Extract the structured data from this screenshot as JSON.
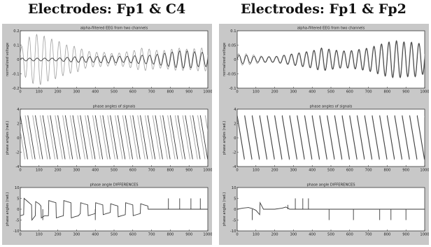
{
  "titles": {
    "left": "Electrodes: Fp1 & C4",
    "right": "Electrodes: Fp1 & Fp2"
  },
  "colors": {
    "figure_bg": "#c8c8c8",
    "axes_bg": "#ffffff",
    "series_dark": "#3a3a3a",
    "series_light": "#a0a0a0"
  },
  "chart_data": [
    {
      "type": "line",
      "panel": "left-top",
      "title": "alpha-filtered EEG from two channels",
      "ylabel": "normalized voltage",
      "xlim": [
        0,
        1000
      ],
      "ylim": [
        -0.2,
        0.2
      ],
      "xticks": [
        "0",
        "100",
        "200",
        "300",
        "400",
        "500",
        "600",
        "700",
        "800",
        "900",
        "1000"
      ],
      "yticks": [
        "-0.2",
        "-0.1",
        "0",
        "0.1",
        "0.2"
      ],
      "series": [
        {
          "color": "#a0a0a0",
          "x": [
            0,
            50,
            100,
            150,
            200,
            250,
            300,
            350,
            400,
            450,
            500,
            550,
            600,
            650,
            700,
            750,
            800,
            850,
            900,
            950,
            1000
          ],
          "envelope": [
            0.08,
            0.16,
            0.18,
            0.15,
            0.13,
            0.1,
            0.09,
            0.06,
            0.05,
            0.05,
            0.04,
            0.05,
            0.06,
            0.08,
            0.07,
            0.06,
            0.07,
            0.08,
            0.07,
            0.08,
            0.08
          ]
        },
        {
          "color": "#3a3a3a",
          "x": [
            0,
            50,
            100,
            150,
            200,
            250,
            300,
            350,
            400,
            450,
            500,
            550,
            600,
            650,
            700,
            750,
            800,
            850,
            900,
            950,
            1000
          ],
          "envelope": [
            0.01,
            0.01,
            0.01,
            0.01,
            0.01,
            0.015,
            0.02,
            0.02,
            0.02,
            0.025,
            0.025,
            0.02,
            0.025,
            0.03,
            0.03,
            0.04,
            0.05,
            0.06,
            0.06,
            0.05,
            0.05
          ]
        }
      ]
    },
    {
      "type": "line",
      "panel": "left-mid",
      "title": "phase angles of signals",
      "ylabel": "phase angles (rad.)",
      "xlim": [
        0,
        1000
      ],
      "ylim": [
        -4,
        4
      ],
      "xticks": [
        "0",
        "100",
        "200",
        "300",
        "400",
        "500",
        "600",
        "700",
        "800",
        "900",
        "1000"
      ],
      "yticks": [
        "-4",
        "-2",
        "0",
        "2",
        "4"
      ],
      "cycles": 25,
      "series": [
        {
          "color": "#a0a0a0",
          "phase_offset": 0.35
        },
        {
          "color": "#3a3a3a",
          "phase_offset": 0.0
        }
      ]
    },
    {
      "type": "line",
      "panel": "left-bottom",
      "title": "phase angle DIFFERENCES",
      "ylabel": "phase angles (rad.)",
      "xlim": [
        0,
        1000
      ],
      "ylim": [
        -10,
        10
      ],
      "xticks": [
        "0",
        "100",
        "200",
        "300",
        "400",
        "500",
        "600",
        "700",
        "800",
        "900",
        "1000"
      ],
      "yticks": [
        "-10",
        "-5",
        "0",
        "5",
        "10"
      ],
      "series": [
        {
          "color": "#3a3a3a",
          "x": [
            0,
            18,
            20,
            40,
            60,
            62,
            80,
            82,
            100,
            110,
            112,
            130,
            150,
            152,
            170,
            190,
            192,
            210,
            230,
            232,
            250,
            270,
            272,
            290,
            310,
            320,
            322,
            340,
            360,
            362,
            380,
            400,
            402,
            420,
            440,
            442,
            460,
            480,
            482,
            500,
            520,
            522,
            540,
            560,
            562,
            580,
            600,
            602,
            620,
            640,
            642,
            660,
            680,
            682,
            700,
            720,
            740,
            760,
            780,
            800,
            820,
            840,
            860,
            880,
            900,
            920,
            940,
            960,
            980,
            1000
          ],
          "y": [
            -3,
            -2.5,
            5,
            3.5,
            2,
            -5,
            -3,
            3.5,
            2.5,
            1.5,
            -4,
            -3,
            -3,
            4,
            3.5,
            3,
            -4,
            -3.5,
            -3,
            4,
            3.5,
            3,
            -4,
            -3.5,
            -3,
            -2,
            3,
            2.5,
            2,
            -3,
            -2.5,
            -2,
            3,
            2.5,
            2,
            -2.5,
            -2,
            -1.5,
            2.5,
            2,
            1.5,
            -3.5,
            -3,
            -2.5,
            3,
            2.5,
            2,
            -3,
            -2.5,
            -2,
            2.5,
            2,
            1.5,
            0,
            0,
            0,
            0,
            0,
            0,
            0,
            0,
            0,
            0,
            0,
            0,
            0,
            0,
            0,
            0,
            0
          ],
          "spikes": [
            [
              120,
              -5
            ],
            [
              400,
              -5
            ],
            [
              790,
              5
            ],
            [
              850,
              5
            ],
            [
              910,
              5
            ],
            [
              960,
              5
            ]
          ]
        }
      ]
    },
    {
      "type": "line",
      "panel": "right-top",
      "title": "alpha-filtered EEG from two channels",
      "ylabel": "normalized voltage",
      "xlim": [
        0,
        1000
      ],
      "ylim": [
        -0.1,
        0.1
      ],
      "xticks": [
        "0",
        "100",
        "200",
        "300",
        "400",
        "500",
        "600",
        "700",
        "800",
        "900",
        "1000"
      ],
      "yticks": [
        "-0.1",
        "-0.05",
        "0",
        "0.05",
        "0.1"
      ],
      "series": [
        {
          "color": "#a0a0a0",
          "x": [
            0,
            50,
            100,
            150,
            200,
            250,
            300,
            350,
            400,
            450,
            500,
            550,
            600,
            650,
            700,
            750,
            800,
            850,
            900,
            950,
            1000
          ],
          "envelope": [
            0.02,
            0.02,
            0.015,
            0.01,
            0.01,
            0.015,
            0.02,
            0.025,
            0.03,
            0.04,
            0.035,
            0.03,
            0.03,
            0.035,
            0.04,
            0.05,
            0.06,
            0.065,
            0.06,
            0.06,
            0.05
          ]
        },
        {
          "color": "#3a3a3a",
          "x": [
            0,
            50,
            100,
            150,
            200,
            250,
            300,
            350,
            400,
            450,
            500,
            550,
            600,
            650,
            700,
            750,
            800,
            850,
            900,
            950,
            1000
          ],
          "envelope": [
            0.015,
            0.015,
            0.01,
            0.01,
            0.01,
            0.015,
            0.02,
            0.025,
            0.03,
            0.04,
            0.035,
            0.03,
            0.03,
            0.035,
            0.04,
            0.05,
            0.06,
            0.065,
            0.06,
            0.06,
            0.05
          ]
        }
      ]
    },
    {
      "type": "line",
      "panel": "right-mid",
      "title": "phase angles of signals",
      "ylabel": "phase angles (rad.)",
      "xlim": [
        0,
        1000
      ],
      "ylim": [
        -4,
        4
      ],
      "xticks": [
        "0",
        "100",
        "200",
        "300",
        "400",
        "500",
        "600",
        "700",
        "800",
        "900",
        "1000"
      ],
      "yticks": [
        "-4",
        "-2",
        "0",
        "2",
        "4"
      ],
      "cycles": 25,
      "series": [
        {
          "color": "#a0a0a0",
          "phase_offset": 0.04
        },
        {
          "color": "#3a3a3a",
          "phase_offset": 0.0
        }
      ]
    },
    {
      "type": "line",
      "panel": "right-bottom",
      "title": "phase angle DIFFERENCES",
      "ylabel": "phase angles (rad.)",
      "xlim": [
        0,
        1000
      ],
      "ylim": [
        -10,
        10
      ],
      "xticks": [
        "0",
        "100",
        "200",
        "300",
        "400",
        "500",
        "600",
        "700",
        "800",
        "900",
        "1000"
      ],
      "yticks": [
        "-10",
        "-5",
        "0",
        "5",
        "10"
      ],
      "series": [
        {
          "color": "#3a3a3a",
          "x": [
            0,
            30,
            60,
            80,
            100,
            110,
            120,
            122,
            140,
            200,
            240,
            260,
            280,
            300,
            340,
            380,
            400,
            500,
            600,
            700,
            800,
            900,
            1000
          ],
          "y": [
            0,
            0.5,
            0.8,
            0.3,
            -0.5,
            -1.5,
            -2.5,
            3,
            0,
            0,
            0.5,
            1,
            0,
            0,
            0,
            0,
            0,
            0,
            0,
            0,
            0,
            0,
            0
          ],
          "spikes": [
            [
              80,
              -5
            ],
            [
              270,
              2
            ],
            [
              310,
              5
            ],
            [
              350,
              5
            ],
            [
              380,
              5
            ],
            [
              490,
              -5
            ],
            [
              620,
              -5
            ],
            [
              760,
              -5
            ],
            [
              820,
              -5
            ],
            [
              900,
              -5
            ]
          ]
        }
      ]
    }
  ]
}
